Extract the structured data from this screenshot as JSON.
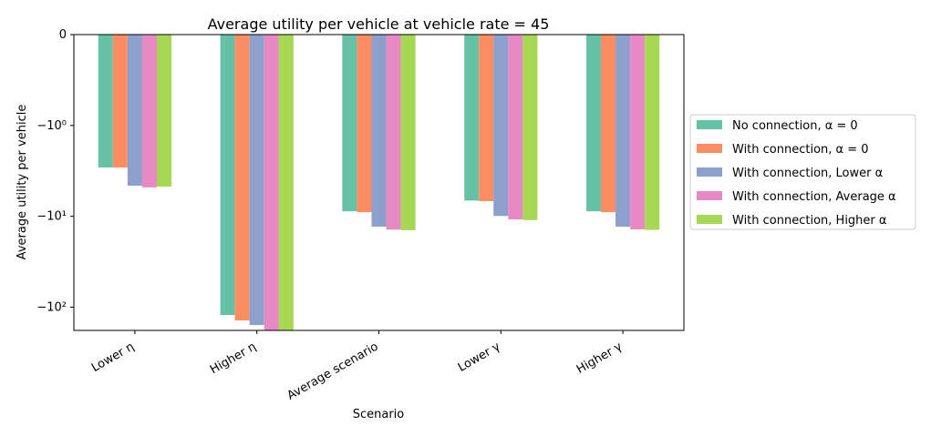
{
  "chart_data": {
    "type": "bar",
    "title": "Average utility per vehicle at vehicle rate = 45",
    "xlabel": "Scenario",
    "ylabel": "Average utility per vehicle",
    "yscale": "symlog",
    "ylim": [
      -180,
      0
    ],
    "yticks": [
      {
        "value": 0,
        "label": "0"
      },
      {
        "value": -1,
        "label": "−10⁰"
      },
      {
        "value": -10,
        "label": "−10¹"
      },
      {
        "value": -100,
        "label": "−10²"
      }
    ],
    "grid": false,
    "legend_position": "right",
    "categories": [
      "Lower η",
      "Higher η",
      "Average scenario",
      "Lower γ",
      "Higher γ"
    ],
    "series": [
      {
        "name": "No connection, α = 0",
        "color": "#66c2a5",
        "values": [
          -2.9,
          -122,
          -8.8,
          -6.7,
          -8.8
        ]
      },
      {
        "name": "With connection, α = 0",
        "color": "#fc8d62",
        "values": [
          -2.9,
          -140,
          -9.0,
          -6.8,
          -9.0
        ]
      },
      {
        "name": "With connection, Lower α",
        "color": "#8da0cb",
        "values": [
          -4.6,
          -157,
          -13.0,
          -9.9,
          -13.0
        ]
      },
      {
        "name": "With connection, Average α",
        "color": "#e78ac3",
        "values": [
          -4.8,
          -178,
          -14.0,
          -10.8,
          -13.9
        ]
      },
      {
        "name": "With connection, Higher α",
        "color": "#a6d854",
        "values": [
          -4.7,
          -180,
          -14.2,
          -11.0,
          -14.1
        ]
      }
    ]
  }
}
